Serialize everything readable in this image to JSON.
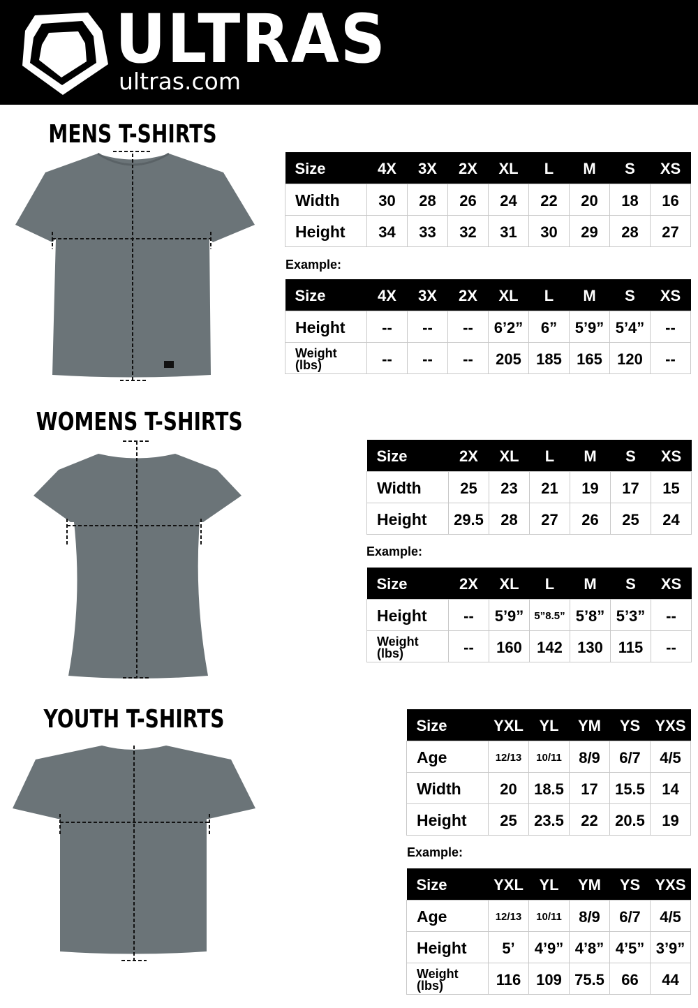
{
  "header": {
    "brand": "ULTRAS",
    "site": "ultras.com",
    "background": "#000000"
  },
  "sections": [
    {
      "title": "MENS T-SHIRTS",
      "size_table": {
        "headers": [
          "Size",
          "4X",
          "3X",
          "2X",
          "XL",
          "L",
          "M",
          "S",
          "XS"
        ],
        "rows": [
          [
            "Width",
            "30",
            "28",
            "26",
            "24",
            "22",
            "20",
            "18",
            "16"
          ],
          [
            "Height",
            "34",
            "33",
            "32",
            "31",
            "30",
            "29",
            "28",
            "27"
          ]
        ]
      },
      "example_label": "Example:",
      "example_table": {
        "headers": [
          "Size",
          "4X",
          "3X",
          "2X",
          "XL",
          "L",
          "M",
          "S",
          "XS"
        ],
        "rows": [
          [
            "Height",
            "--",
            "--",
            "--",
            "6’2”",
            "6”",
            "5’9”",
            "5’4”",
            "--"
          ],
          [
            "Weight (lbs)",
            "--",
            "--",
            "--",
            "205",
            "185",
            "165",
            "120",
            "--"
          ]
        ]
      }
    },
    {
      "title": "WOMENS T-SHIRTS",
      "size_table": {
        "headers": [
          "Size",
          "2X",
          "XL",
          "L",
          "M",
          "S",
          "XS"
        ],
        "rows": [
          [
            "Width",
            "25",
            "23",
            "21",
            "19",
            "17",
            "15"
          ],
          [
            "Height",
            "29.5",
            "28",
            "27",
            "26",
            "25",
            "24"
          ]
        ]
      },
      "example_label": "Example:",
      "example_table": {
        "headers": [
          "Size",
          "2X",
          "XL",
          "L",
          "M",
          "S",
          "XS"
        ],
        "rows": [
          [
            "Height",
            "--",
            "5’9”",
            "5”8.5”",
            "5’8”",
            "5’3”",
            "--"
          ],
          [
            "Weight (lbs)",
            "--",
            "160",
            "142",
            "130",
            "115",
            "--"
          ]
        ]
      }
    },
    {
      "title": "YOUTH T-SHIRTS",
      "size_table": {
        "headers": [
          "Size",
          "YXL",
          "YL",
          "YM",
          "YS",
          "YXS"
        ],
        "rows": [
          [
            "Age",
            "12/13",
            "10/11",
            "8/9",
            "6/7",
            "4/5"
          ],
          [
            "Width",
            "20",
            "18.5",
            "17",
            "15.5",
            "14"
          ],
          [
            "Height",
            "25",
            "23.5",
            "22",
            "20.5",
            "19"
          ]
        ]
      },
      "example_label": "Example:",
      "example_table": {
        "headers": [
          "Size",
          "YXL",
          "YL",
          "YM",
          "YS",
          "YXS"
        ],
        "rows": [
          [
            "Age",
            "12/13",
            "10/11",
            "8/9",
            "6/7",
            "4/5"
          ],
          [
            "Height",
            "5’",
            "4’9”",
            "4’8”",
            "4’5”",
            "3’9”"
          ],
          [
            "Weight (lbs)",
            "116",
            "109",
            "75.5",
            "66",
            "44"
          ]
        ]
      }
    }
  ],
  "colors": {
    "shirt": "#6b7478",
    "table_header": "#000000",
    "border": "#c8c8c8"
  }
}
